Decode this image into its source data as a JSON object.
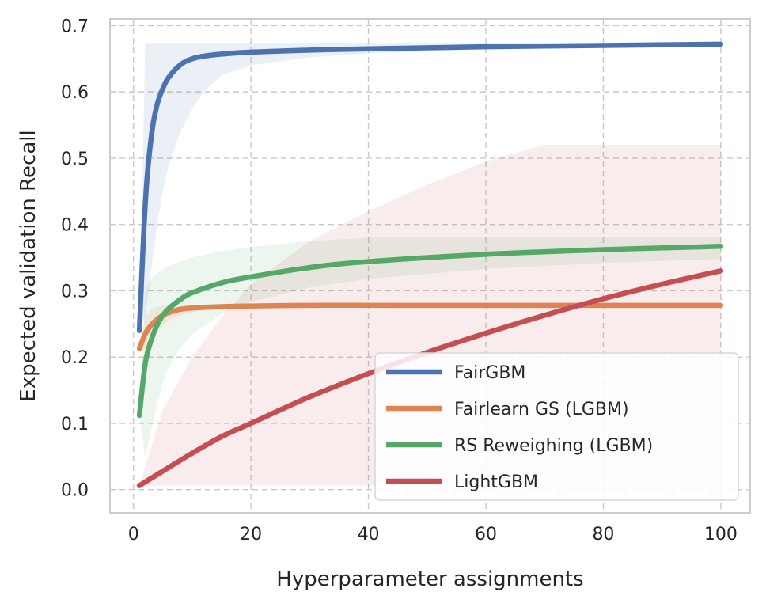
{
  "chart_data": {
    "type": "line",
    "title": "",
    "xlabel": "Hyperparameter assignments",
    "ylabel": "Expected validation Recall",
    "xlim": [
      -4,
      105
    ],
    "ylim": [
      -0.035,
      0.71
    ],
    "x_ticks": [
      0,
      20,
      40,
      60,
      80,
      100
    ],
    "y_ticks": [
      0.0,
      0.1,
      0.2,
      0.3,
      0.4,
      0.5,
      0.6,
      0.7
    ],
    "x_tick_labels": [
      "0",
      "20",
      "40",
      "60",
      "80",
      "100"
    ],
    "y_tick_labels": [
      "0.0",
      "0.1",
      "0.2",
      "0.3",
      "0.4",
      "0.5",
      "0.6",
      "0.7"
    ],
    "grid": true,
    "legend_position": "lower-right",
    "series": [
      {
        "name": "FairGBM",
        "color": "#4c72b0",
        "x": [
          1,
          2,
          3,
          4,
          5,
          6,
          8,
          10,
          12,
          15,
          20,
          30,
          40,
          60,
          80,
          100
        ],
        "y": [
          0.24,
          0.43,
          0.53,
          0.58,
          0.605,
          0.622,
          0.641,
          0.65,
          0.654,
          0.657,
          0.66,
          0.663,
          0.665,
          0.668,
          0.67,
          0.672
        ],
        "lower": [
          0.24,
          0.26,
          0.33,
          0.4,
          0.45,
          0.49,
          0.54,
          0.575,
          0.6,
          0.625,
          0.64,
          0.652,
          0.658,
          0.664,
          0.667,
          0.669
        ],
        "upper": [
          0.24,
          0.674,
          0.674,
          0.674,
          0.674,
          0.674,
          0.674,
          0.674,
          0.674,
          0.674,
          0.674,
          0.674,
          0.674,
          0.674,
          0.674,
          0.674
        ]
      },
      {
        "name": "Fairlearn GS (LGBM)",
        "color": "#dd8452",
        "x": [
          1,
          2,
          3,
          4,
          5,
          6,
          8,
          10,
          15,
          20,
          30,
          50,
          100
        ],
        "y": [
          0.213,
          0.235,
          0.248,
          0.257,
          0.263,
          0.267,
          0.272,
          0.274,
          0.276,
          0.277,
          0.278,
          0.278,
          0.278
        ],
        "lower": [
          0.213,
          0.21,
          0.225,
          0.238,
          0.248,
          0.255,
          0.263,
          0.268,
          0.273,
          0.276,
          0.277,
          0.278,
          0.278
        ],
        "upper": [
          0.213,
          0.262,
          0.272,
          0.276,
          0.278,
          0.278,
          0.278,
          0.278,
          0.278,
          0.278,
          0.278,
          0.278,
          0.278
        ]
      },
      {
        "name": "RS Reweighing (LGBM)",
        "color": "#55a868",
        "x": [
          1,
          2,
          3,
          4,
          5,
          6,
          8,
          10,
          15,
          20,
          30,
          40,
          60,
          80,
          100
        ],
        "y": [
          0.112,
          0.19,
          0.225,
          0.248,
          0.263,
          0.273,
          0.287,
          0.297,
          0.312,
          0.321,
          0.335,
          0.344,
          0.355,
          0.362,
          0.367
        ],
        "lower": [
          0.112,
          0.05,
          0.09,
          0.13,
          0.16,
          0.185,
          0.215,
          0.235,
          0.265,
          0.283,
          0.305,
          0.318,
          0.333,
          0.342,
          0.348
        ],
        "upper": [
          0.112,
          0.3,
          0.318,
          0.326,
          0.332,
          0.337,
          0.344,
          0.35,
          0.36,
          0.366,
          0.375,
          0.38,
          0.38,
          0.38,
          0.38
        ]
      },
      {
        "name": "LightGBM",
        "color": "#c44e52",
        "x": [
          1,
          5,
          10,
          15,
          20,
          30,
          40,
          50,
          60,
          70,
          80,
          90,
          100
        ],
        "y": [
          0.006,
          0.028,
          0.055,
          0.08,
          0.1,
          0.14,
          0.175,
          0.207,
          0.236,
          0.263,
          0.288,
          0.31,
          0.33
        ],
        "lower": [
          0.006,
          0.006,
          0.006,
          0.006,
          0.006,
          0.006,
          0.006,
          0.006,
          0.006,
          0.006,
          0.006,
          0.006,
          0.006
        ],
        "upper": [
          0.006,
          0.12,
          0.2,
          0.26,
          0.31,
          0.375,
          0.42,
          0.46,
          0.495,
          0.52,
          0.52,
          0.52,
          0.52
        ]
      }
    ]
  }
}
